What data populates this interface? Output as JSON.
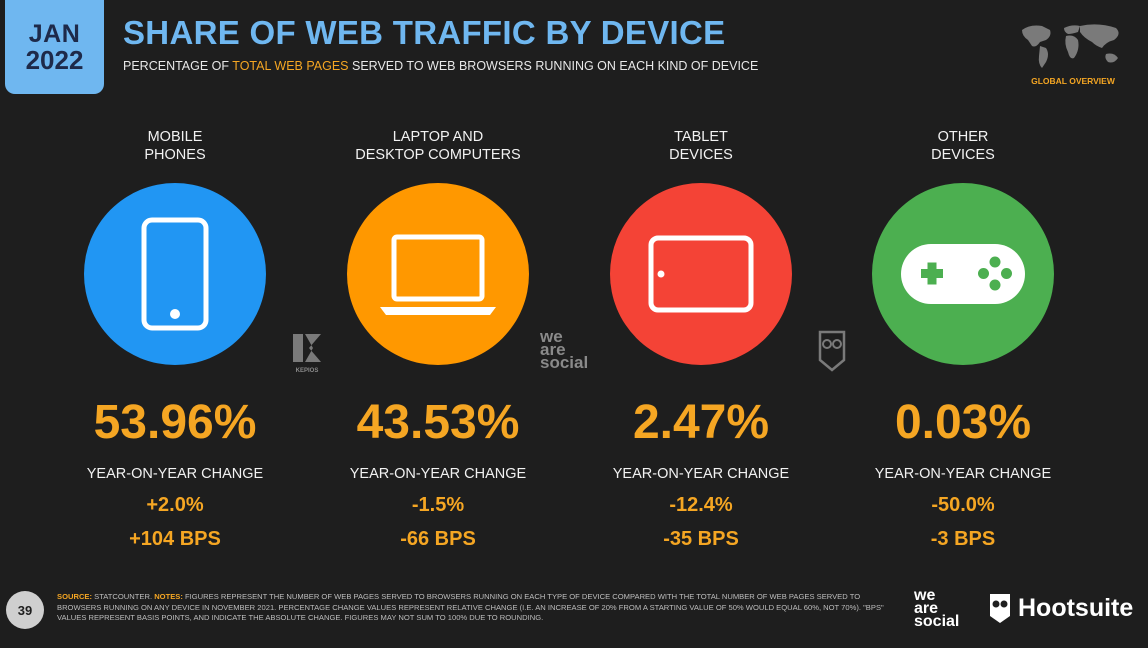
{
  "header": {
    "month": "JAN",
    "year": "2022",
    "title": "SHARE OF WEB TRAFFIC BY DEVICE",
    "subtitle_pre": "PERCENTAGE OF ",
    "subtitle_highlight": "TOTAL WEB PAGES",
    "subtitle_post": " SERVED TO WEB BROWSERS RUNNING ON EACH KIND OF DEVICE",
    "region_label": "GLOBAL OVERVIEW"
  },
  "colors": {
    "accent_blue": "#6fb7f0",
    "accent_orange": "#f5a623",
    "mobile": "#2196f3",
    "laptop": "#ff9800",
    "tablet": "#f44336",
    "other": "#4caf50"
  },
  "chart_data": {
    "type": "table",
    "title": "SHARE OF WEB TRAFFIC BY DEVICE",
    "yoy_label": "YEAR-ON-YEAR CHANGE",
    "devices": [
      {
        "category": "MOBILE\nPHONES",
        "icon": "smartphone-icon",
        "value": "53.96%",
        "yoy_pct": "+2.0%",
        "yoy_bps": "+104 BPS"
      },
      {
        "category": "LAPTOP AND\nDESKTOP COMPUTERS",
        "icon": "laptop-icon",
        "value": "43.53%",
        "yoy_pct": "-1.5%",
        "yoy_bps": "-66 BPS"
      },
      {
        "category": "TABLET\nDEVICES",
        "icon": "tablet-icon",
        "value": "2.47%",
        "yoy_pct": "-12.4%",
        "yoy_bps": "-35 BPS"
      },
      {
        "category": "OTHER\nDEVICES",
        "icon": "gamepad-icon",
        "value": "0.03%",
        "yoy_pct": "-50.0%",
        "yoy_bps": "-3 BPS"
      }
    ]
  },
  "watermarks": {
    "kepios": "KEPIOS",
    "we_are_social": "we\nare\nsocial"
  },
  "footer": {
    "page_number": "39",
    "source_label": "SOURCE:",
    "source_text": " STATCOUNTER. ",
    "notes_label": "NOTES:",
    "notes_text": " FIGURES REPRESENT THE NUMBER OF WEB PAGES SERVED TO BROWSERS RUNNING ON EACH TYPE OF DEVICE COMPARED WITH THE TOTAL NUMBER OF WEB PAGES SERVED TO BROWSERS RUNNING ON ANY DEVICE IN NOVEMBER 2021. PERCENTAGE CHANGE VALUES REPRESENT RELATIVE CHANGE (I.E. AN INCREASE OF 20% FROM A STARTING VALUE OF 50% WOULD EQUAL 60%, NOT 70%). \"BPS\" VALUES REPRESENT BASIS POINTS, AND INDICATE THE ABSOLUTE CHANGE. FIGURES MAY NOT SUM TO 100% DUE TO ROUNDING.",
    "brand_wr": "we\nare\nsocial",
    "brand_hs": "Hootsuite"
  }
}
